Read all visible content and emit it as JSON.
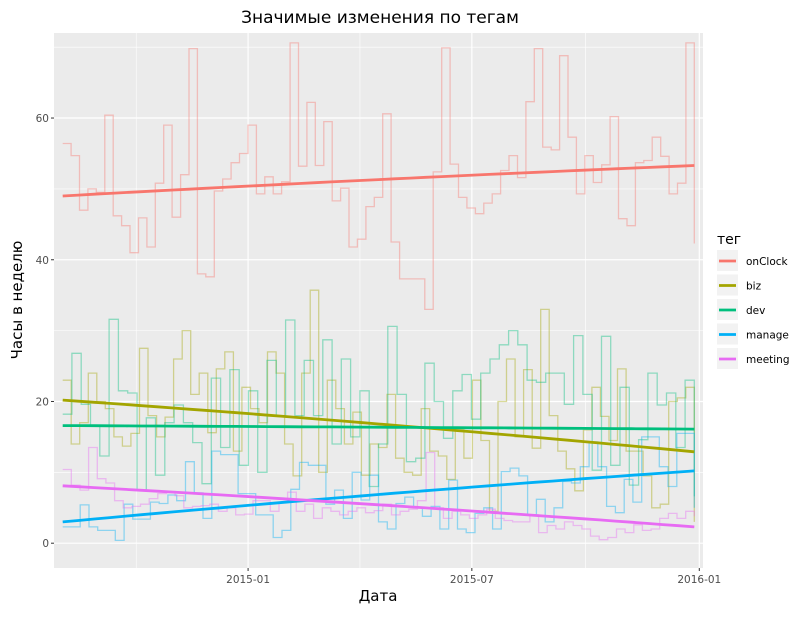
{
  "chart_data": {
    "type": "line",
    "title": "Значимые изменения по тегам",
    "xlabel": "Дата",
    "ylabel": "Часы в неделю",
    "x_start": "2014-08-04",
    "x_end": "2015-12-28",
    "xlim": [
      "2014-07-28",
      "2016-01-04"
    ],
    "ylim": [
      -3.5,
      72
    ],
    "x_ticks": [
      {
        "date": "2015-01-01",
        "label": "2015-01"
      },
      {
        "date": "2015-07-01",
        "label": "2015-07"
      },
      {
        "date": "2016-01-01",
        "label": "2016-01"
      }
    ],
    "y_ticks": [
      0,
      20,
      40,
      60
    ],
    "grid": true,
    "legend": {
      "title": "тег",
      "position": "right"
    },
    "series": [
      {
        "name": "onClock",
        "color": "#f8766d",
        "trend": [
          49,
          53.3
        ],
        "values": [
          56.4,
          54.7,
          47,
          50,
          49.5,
          60.4,
          46.2,
          44.8,
          41,
          45.9,
          41.8,
          50.8,
          59,
          46,
          52,
          69.8,
          38,
          37.6,
          49.7,
          51.4,
          53.7,
          55,
          59,
          49.3,
          51.7,
          49.3,
          51,
          70.6,
          53.2,
          62.2,
          53.3,
          59.5,
          48.3,
          50.1,
          41.8,
          42.9,
          47.5,
          48.8,
          60.6,
          42.5,
          37.3,
          37.3,
          37.3,
          33,
          52.4,
          69.9,
          53.5,
          48.8,
          47.3,
          46.5,
          48,
          49.3,
          52.6,
          54.7,
          51.6,
          62.3,
          69.8,
          55.9,
          55.5,
          68.8,
          57.3,
          49.3,
          54.7,
          50.9,
          53.4,
          60.2,
          45.8,
          44.8,
          53.7,
          54,
          57.3,
          54.6,
          49.3,
          50.8,
          70.6,
          42.3
        ]
      },
      {
        "name": "biz",
        "color": "#a3a500",
        "trend": [
          20.2,
          12.9
        ],
        "values": [
          23,
          14,
          17,
          24,
          20,
          19,
          15,
          13.7,
          15.5,
          27.5,
          18,
          15,
          17.8,
          26,
          30,
          21,
          24,
          15.6,
          24.6,
          27,
          13,
          22,
          19,
          17,
          27,
          24,
          14,
          9.5,
          24,
          35.7,
          10,
          23,
          19,
          14,
          18.5,
          9.6,
          14,
          13.5,
          21,
          12,
          10,
          9.6,
          19,
          13,
          12.3,
          9,
          16,
          12,
          23,
          14.5,
          4.5,
          20,
          26,
          15,
          24.5,
          13.4,
          33,
          18,
          13,
          10.5,
          7.4,
          16,
          22,
          17.9,
          14.5,
          24.6,
          13,
          13,
          9.5,
          5,
          5.5,
          20,
          20.5,
          22,
          3
        ]
      },
      {
        "name": "dev",
        "color": "#00bf7d",
        "trend": [
          16.6,
          16.1
        ],
        "values": [
          18.2,
          26.8,
          19.6,
          16.5,
          12.3,
          31.6,
          21.5,
          21.2,
          7.5,
          17.7,
          9.6,
          17,
          19.5,
          17,
          14.2,
          8.4,
          23.3,
          13.5,
          24.5,
          11,
          21.5,
          10,
          25.8,
          18,
          31.5,
          18,
          25.8,
          18,
          28.7,
          14,
          26,
          15,
          21.5,
          8,
          14,
          30.6,
          21,
          11.5,
          12,
          25.4,
          20,
          14.8,
          21.5,
          23.8,
          17.5,
          24,
          26,
          28,
          30,
          28,
          23,
          22.7,
          24,
          24,
          19.6,
          29.3,
          21,
          10.3,
          29.2,
          11,
          22,
          8.2,
          14.6,
          24,
          19.5,
          21.2,
          13.5,
          23,
          6.6
        ]
      },
      {
        "name": "manage",
        "color": "#00b0f6",
        "trend": [
          3,
          10.2
        ],
        "values": [
          2.3,
          2.3,
          5.4,
          2.3,
          1.8,
          1.8,
          0.4,
          5.5,
          3.4,
          3.4,
          5.8,
          5.6,
          6.8,
          6,
          11.5,
          7.1,
          3.5,
          13,
          12.5,
          12.5,
          7,
          7,
          4,
          4,
          0.8,
          1.8,
          7.6,
          11.4,
          11,
          11,
          5.5,
          7.5,
          3.5,
          10,
          6.1,
          9.6,
          3,
          2,
          5.6,
          6.5,
          5,
          3.8,
          5.2,
          2,
          8.9,
          2,
          1.5,
          4.2,
          5,
          2,
          10.1,
          10.6,
          9.5,
          4,
          6.2,
          3,
          5,
          8.7,
          8.5,
          10.8,
          14.3,
          10.8,
          5.2,
          4.3,
          9,
          5.8,
          15,
          15,
          10.8,
          8,
          15.5,
          15.5,
          5
        ]
      },
      {
        "name": "meeting",
        "color": "#e76bf3",
        "trend": [
          8.1,
          2.3
        ],
        "values": [
          10.4,
          8.2,
          7.5,
          13.5,
          9.1,
          8.5,
          6,
          5,
          5.2,
          5.5,
          6.3,
          7,
          7.3,
          6.7,
          5,
          5.2,
          5.3,
          5.5,
          4.5,
          5,
          4,
          4.1,
          6,
          6,
          4.5,
          5.8,
          7.2,
          4.5,
          5.5,
          3.5,
          5,
          4.5,
          4,
          4.5,
          5,
          4.3,
          4.6,
          5.5,
          4,
          4.5,
          4.8,
          6,
          12.8,
          5,
          3.5,
          4.5,
          4,
          3.5,
          4,
          4.8,
          3.5,
          3.2,
          3,
          3,
          4,
          1.5,
          2.5,
          2,
          3,
          2.5,
          2,
          1,
          0.5,
          0.8,
          2,
          1.5,
          2.6,
          1.8,
          2,
          3.5,
          4.2,
          3.5,
          4.5,
          3.8
        ]
      }
    ]
  }
}
